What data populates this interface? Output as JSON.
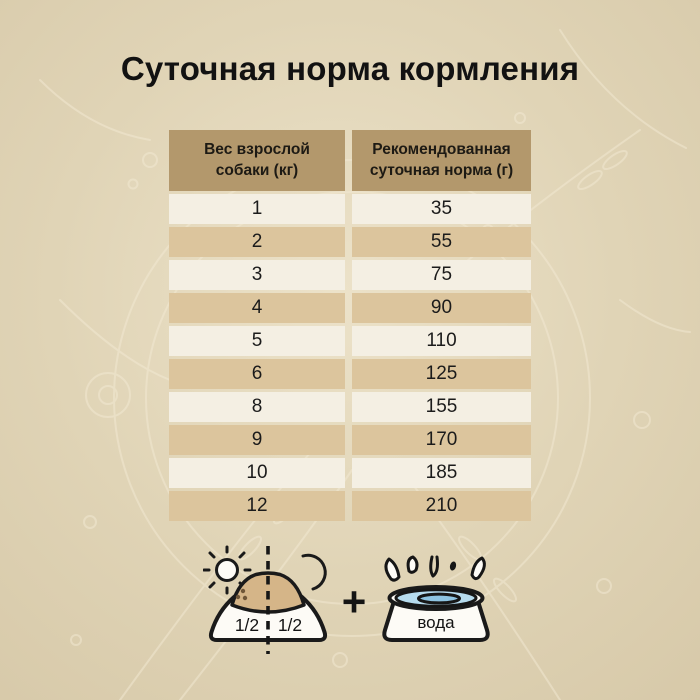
{
  "title": "Суточная норма кормления",
  "table": {
    "headers": [
      "Вес взрослой собаки (кг)",
      "Рекомендованная суточная норма (г)"
    ],
    "rows": [
      [
        "1",
        "35"
      ],
      [
        "2",
        "55"
      ],
      [
        "3",
        "75"
      ],
      [
        "4",
        "90"
      ],
      [
        "5",
        "110"
      ],
      [
        "6",
        "125"
      ],
      [
        "8",
        "155"
      ],
      [
        "9",
        "170"
      ],
      [
        "10",
        "185"
      ],
      [
        "12",
        "210"
      ]
    ]
  },
  "chart_data": {
    "type": "table",
    "title": "Суточная норма кормления",
    "columns": [
      "Вес взрослой собаки (кг)",
      "Рекомендованная суточная норма (г)"
    ],
    "rows": [
      [
        1,
        35
      ],
      [
        2,
        55
      ],
      [
        3,
        75
      ],
      [
        4,
        90
      ],
      [
        5,
        110
      ],
      [
        6,
        125
      ],
      [
        8,
        155
      ],
      [
        9,
        170
      ],
      [
        10,
        185
      ],
      [
        12,
        210
      ]
    ]
  },
  "legend": {
    "portion_left": "1/2",
    "portion_right": "1/2",
    "plus": "+",
    "water_label": "вода",
    "icons": [
      "sun-icon",
      "moon-icon",
      "food-bowl-icon",
      "plus-icon",
      "water-bowl-icon",
      "splash-drops-icon"
    ]
  },
  "colors": {
    "header_bg": "#b3986c",
    "row_light": "#f4efe3",
    "row_dark": "#dcc59d",
    "bg_center": "#ece2c9",
    "bg_mid": "#e0d4b6",
    "bg_edge": "#d7c9a9",
    "kibble": "#d5b588",
    "water_light": "#b6dbee",
    "water_mid": "#8ec4e2",
    "outline": "#1a1a1a"
  }
}
